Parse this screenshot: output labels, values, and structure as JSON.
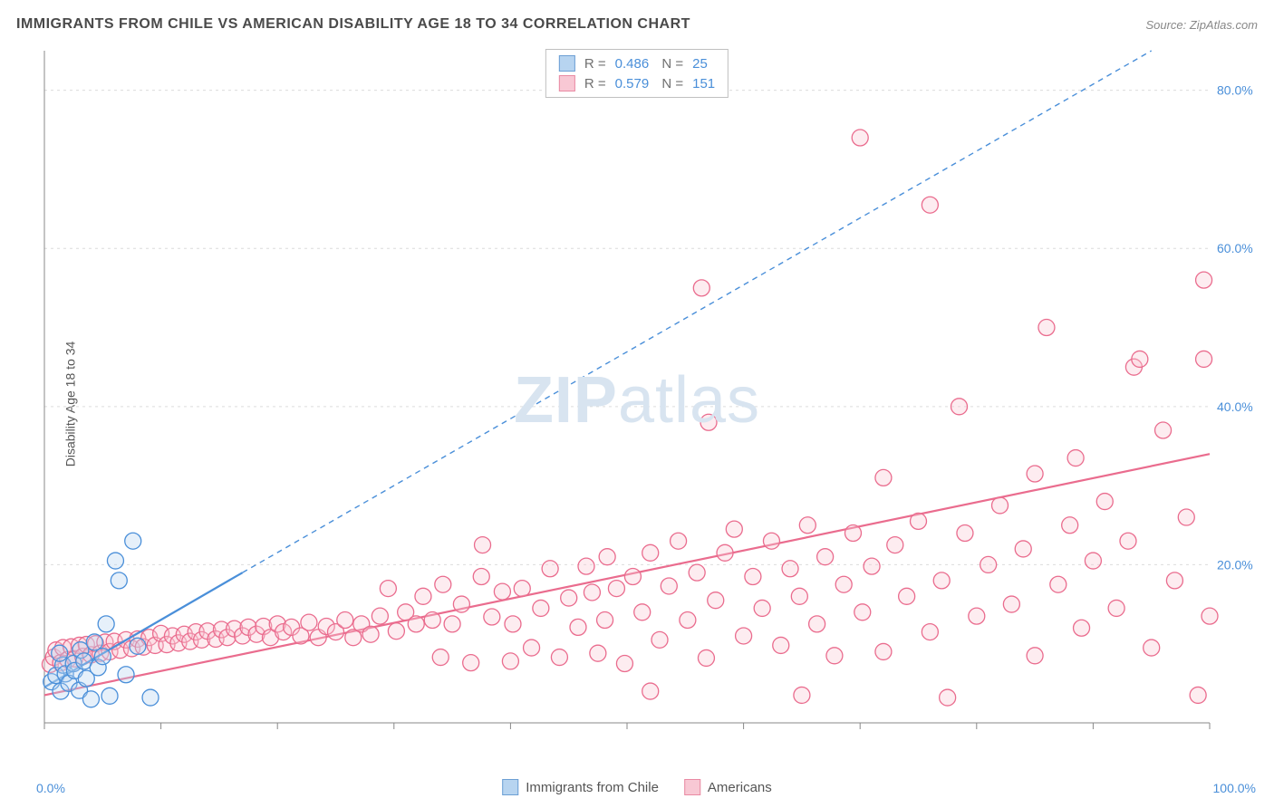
{
  "header": {
    "title": "IMMIGRANTS FROM CHILE VS AMERICAN DISABILITY AGE 18 TO 34 CORRELATION CHART",
    "source": "Source: ZipAtlas.com"
  },
  "y_axis_label": "Disability Age 18 to 34",
  "watermark": {
    "bold": "ZIP",
    "light": "atlas"
  },
  "stats": [
    {
      "swatch_fill": "#b7d4f0",
      "swatch_stroke": "#6c9fd4",
      "r": "0.486",
      "n": "25"
    },
    {
      "swatch_fill": "#f8c8d4",
      "swatch_stroke": "#e98aa3",
      "r": "0.579",
      "n": "151"
    }
  ],
  "bottom_legend": [
    {
      "swatch_fill": "#b7d4f0",
      "swatch_stroke": "#6c9fd4",
      "label": "Immigrants from Chile"
    },
    {
      "swatch_fill": "#f8c8d4",
      "swatch_stroke": "#e98aa3",
      "label": "Americans"
    }
  ],
  "x_axis": {
    "start_label": "0.0%",
    "end_label": "100.0%"
  },
  "chart": {
    "type": "scatter",
    "background_color": "#ffffff",
    "grid_color": "#dcdcdc",
    "axis_color": "#888888",
    "tick_label_color": "#4a8fd9",
    "tick_fontsize": 14,
    "xlim": [
      0,
      100
    ],
    "ylim": [
      0,
      85
    ],
    "y_ticks": [
      20,
      40,
      60,
      80
    ],
    "y_tick_labels": [
      "20.0%",
      "40.0%",
      "60.0%",
      "80.0%"
    ],
    "x_tick_positions": [
      0,
      10,
      20,
      30,
      40,
      50,
      60,
      70,
      80,
      90,
      100
    ],
    "marker_radius": 9,
    "marker_fill_opacity": 0.35,
    "series": [
      {
        "name": "blue",
        "stroke": "#4a8fd9",
        "fill": "#b7d4f0",
        "regression": {
          "x1": 0,
          "y1": 4.5,
          "x2": 17,
          "y2": 19,
          "width": 2.2
        },
        "regression_ext": {
          "x1": 17,
          "y1": 19,
          "x2": 95,
          "y2": 85,
          "dash": "6,5",
          "width": 1.4
        },
        "points": [
          [
            0.6,
            5.2
          ],
          [
            1.0,
            6.0
          ],
          [
            1.4,
            4.0
          ],
          [
            1.6,
            7.3
          ],
          [
            1.8,
            6.2
          ],
          [
            1.3,
            8.8
          ],
          [
            2.1,
            5.0
          ],
          [
            2.5,
            7.5
          ],
          [
            2.6,
            6.6
          ],
          [
            3.0,
            4.1
          ],
          [
            3.1,
            9.2
          ],
          [
            3.4,
            7.8
          ],
          [
            3.6,
            5.6
          ],
          [
            4.0,
            3.0
          ],
          [
            4.3,
            10.2
          ],
          [
            4.6,
            7.0
          ],
          [
            5.0,
            8.4
          ],
          [
            5.3,
            12.5
          ],
          [
            5.6,
            3.4
          ],
          [
            6.1,
            20.5
          ],
          [
            6.4,
            18.0
          ],
          [
            7.0,
            6.1
          ],
          [
            7.6,
            23.0
          ],
          [
            8.0,
            9.7
          ],
          [
            9.1,
            3.2
          ]
        ]
      },
      {
        "name": "pink",
        "stroke": "#ea6c8e",
        "fill": "#f8c8d4",
        "regression": {
          "x1": 0,
          "y1": 3.5,
          "x2": 100,
          "y2": 34,
          "width": 2.2
        },
        "points": [
          [
            0.5,
            7.4
          ],
          [
            0.8,
            8.3
          ],
          [
            1.0,
            9.2
          ],
          [
            1.4,
            7.6
          ],
          [
            1.6,
            9.5
          ],
          [
            2.0,
            8.0
          ],
          [
            2.3,
            9.6
          ],
          [
            2.6,
            8.1
          ],
          [
            3.0,
            9.8
          ],
          [
            3.3,
            8.4
          ],
          [
            3.6,
            9.9
          ],
          [
            4.0,
            8.6
          ],
          [
            4.4,
            10.0
          ],
          [
            4.8,
            8.8
          ],
          [
            5.2,
            10.2
          ],
          [
            5.6,
            9.0
          ],
          [
            6.0,
            10.3
          ],
          [
            6.5,
            9.2
          ],
          [
            7.0,
            10.5
          ],
          [
            7.5,
            9.4
          ],
          [
            8.0,
            10.6
          ],
          [
            8.5,
            9.6
          ],
          [
            9.0,
            10.8
          ],
          [
            9.5,
            9.8
          ],
          [
            10.0,
            11.3
          ],
          [
            10.5,
            9.9
          ],
          [
            11.0,
            11.0
          ],
          [
            11.5,
            10.1
          ],
          [
            12.0,
            11.2
          ],
          [
            12.5,
            10.3
          ],
          [
            13.0,
            11.5
          ],
          [
            13.5,
            10.5
          ],
          [
            14.0,
            11.6
          ],
          [
            14.7,
            10.6
          ],
          [
            15.2,
            11.8
          ],
          [
            15.7,
            10.8
          ],
          [
            16.3,
            11.9
          ],
          [
            17.0,
            11.0
          ],
          [
            17.5,
            12.1
          ],
          [
            18.2,
            11.2
          ],
          [
            18.8,
            12.2
          ],
          [
            19.4,
            10.8
          ],
          [
            20.0,
            12.5
          ],
          [
            20.5,
            11.5
          ],
          [
            21.2,
            12.1
          ],
          [
            22.0,
            11.0
          ],
          [
            22.7,
            12.7
          ],
          [
            23.5,
            10.8
          ],
          [
            24.2,
            12.2
          ],
          [
            25.0,
            11.5
          ],
          [
            25.8,
            13.0
          ],
          [
            26.5,
            10.8
          ],
          [
            27.2,
            12.5
          ],
          [
            28.0,
            11.2
          ],
          [
            28.8,
            13.5
          ],
          [
            29.5,
            17.0
          ],
          [
            30.2,
            11.6
          ],
          [
            31.0,
            14.0
          ],
          [
            31.9,
            12.5
          ],
          [
            32.5,
            16.0
          ],
          [
            33.3,
            13.0
          ],
          [
            34.2,
            17.5
          ],
          [
            35.0,
            12.5
          ],
          [
            35.8,
            15.0
          ],
          [
            36.6,
            7.6
          ],
          [
            34.0,
            8.3
          ],
          [
            37.5,
            18.5
          ],
          [
            37.6,
            22.5
          ],
          [
            38.4,
            13.4
          ],
          [
            39.3,
            16.6
          ],
          [
            40.0,
            7.8
          ],
          [
            40.2,
            12.5
          ],
          [
            41.0,
            17.0
          ],
          [
            41.8,
            9.5
          ],
          [
            42.6,
            14.5
          ],
          [
            43.4,
            19.5
          ],
          [
            44.2,
            8.3
          ],
          [
            45.0,
            15.8
          ],
          [
            45.8,
            12.1
          ],
          [
            46.5,
            19.8
          ],
          [
            47.0,
            16.5
          ],
          [
            47.5,
            8.8
          ],
          [
            48.3,
            21.0
          ],
          [
            48.1,
            13.0
          ],
          [
            49.1,
            17.0
          ],
          [
            49.8,
            7.5
          ],
          [
            50.5,
            18.5
          ],
          [
            51.3,
            14.0
          ],
          [
            52.0,
            21.5
          ],
          [
            52.8,
            10.5
          ],
          [
            52.0,
            4.0
          ],
          [
            53.6,
            17.3
          ],
          [
            54.4,
            23.0
          ],
          [
            55.2,
            13.0
          ],
          [
            56.0,
            19.0
          ],
          [
            56.4,
            55.0
          ],
          [
            56.8,
            8.2
          ],
          [
            57.0,
            38.0
          ],
          [
            57.6,
            15.5
          ],
          [
            58.4,
            21.5
          ],
          [
            59.2,
            24.5
          ],
          [
            60.0,
            11.0
          ],
          [
            60.8,
            18.5
          ],
          [
            61.6,
            14.5
          ],
          [
            62.4,
            23.0
          ],
          [
            63.2,
            9.8
          ],
          [
            64.0,
            19.5
          ],
          [
            64.8,
            16.0
          ],
          [
            65.5,
            25.0
          ],
          [
            65.0,
            3.5
          ],
          [
            66.3,
            12.5
          ],
          [
            67.0,
            21.0
          ],
          [
            67.8,
            8.5
          ],
          [
            68.6,
            17.5
          ],
          [
            69.4,
            24.0
          ],
          [
            70.2,
            14.0
          ],
          [
            71.0,
            19.8
          ],
          [
            70.0,
            74.0
          ],
          [
            72.0,
            9.0
          ],
          [
            72.0,
            31.0
          ],
          [
            73.0,
            22.5
          ],
          [
            74.0,
            16.0
          ],
          [
            75.0,
            25.5
          ],
          [
            76.0,
            11.5
          ],
          [
            76.0,
            65.5
          ],
          [
            77.0,
            18.0
          ],
          [
            77.5,
            3.2
          ],
          [
            78.5,
            40.0
          ],
          [
            79.0,
            24.0
          ],
          [
            80.0,
            13.5
          ],
          [
            81.0,
            20.0
          ],
          [
            82.0,
            27.5
          ],
          [
            83.0,
            15.0
          ],
          [
            84.0,
            22.0
          ],
          [
            85.0,
            8.5
          ],
          [
            85.0,
            31.5
          ],
          [
            86.0,
            50.0
          ],
          [
            87.0,
            17.5
          ],
          [
            88.0,
            25.0
          ],
          [
            88.5,
            33.5
          ],
          [
            89.0,
            12.0
          ],
          [
            90.0,
            20.5
          ],
          [
            91.0,
            28.0
          ],
          [
            92.0,
            14.5
          ],
          [
            93.5,
            45.0
          ],
          [
            93.0,
            23.0
          ],
          [
            94.0,
            46.0
          ],
          [
            95.0,
            9.5
          ],
          [
            96.0,
            37.0
          ],
          [
            97.0,
            18.0
          ],
          [
            98.0,
            26.0
          ],
          [
            99.5,
            46.0
          ],
          [
            99.5,
            56.0
          ],
          [
            100.0,
            13.5
          ],
          [
            99.0,
            3.5
          ]
        ]
      }
    ]
  }
}
